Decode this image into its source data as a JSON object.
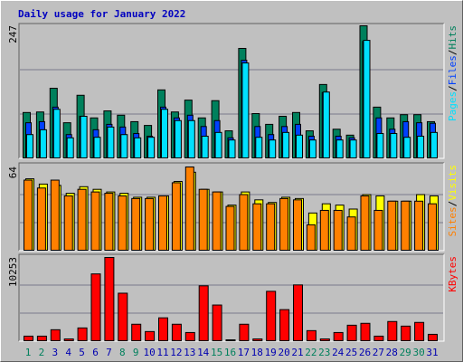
{
  "chart_data": [
    {
      "type": "bar",
      "title": "Daily usage for January 2022",
      "ylim": [
        0,
        247
      ],
      "yticks": [
        247
      ],
      "grid_lines": 3,
      "legend_separator": "/",
      "series": [
        {
          "name": "Hits",
          "color": "#00805c",
          "values": [
            86,
            87,
            131,
            67,
            118,
            76,
            89,
            81,
            69,
            62,
            128,
            87,
            109,
            76,
            108,
            52,
            205,
            84,
            64,
            79,
            86,
            52,
            138,
            55,
            44,
            247,
            96,
            76,
            82,
            82,
            69
          ]
        },
        {
          "name": "Files",
          "color": "#0040ff",
          "values": [
            67,
            69,
            96,
            45,
            79,
            54,
            64,
            59,
            47,
            42,
            96,
            76,
            81,
            60,
            71,
            39,
            183,
            60,
            45,
            60,
            64,
            42,
            123,
            42,
            39,
            218,
            76,
            55,
            69,
            67,
            66
          ]
        },
        {
          "name": "Pages",
          "color": "#00e0ff",
          "values": [
            45,
            54,
            92,
            39,
            79,
            40,
            59,
            45,
            39,
            40,
            92,
            71,
            71,
            42,
            49,
            35,
            178,
            40,
            35,
            49,
            44,
            35,
            124,
            35,
            35,
            220,
            47,
            47,
            40,
            42,
            49
          ]
        }
      ]
    },
    {
      "type": "bar",
      "ylim": [
        0,
        64
      ],
      "yticks": [
        64
      ],
      "grid_lines": 3,
      "legend_separator": "/",
      "series": [
        {
          "name": "Visits",
          "color": "#ffff00",
          "values": [
            55,
            51,
            50,
            44,
            49,
            47,
            45,
            44,
            41,
            41,
            42,
            53,
            60,
            47,
            45,
            35,
            45,
            39,
            37,
            41,
            40,
            29,
            36,
            35,
            32,
            43,
            42,
            38,
            38,
            43,
            42
          ]
        },
        {
          "name": "Sites",
          "color": "#ff8000",
          "values": [
            54,
            48,
            54,
            42,
            47,
            45,
            44,
            42,
            40,
            40,
            42,
            52,
            64,
            47,
            45,
            34,
            43,
            36,
            36,
            40,
            39,
            20,
            31,
            31,
            26,
            42,
            31,
            38,
            38,
            38,
            36
          ]
        }
      ]
    },
    {
      "type": "bar",
      "ylim": [
        0,
        10253
      ],
      "yticks": [
        10253
      ],
      "grid_lines": 3,
      "series": [
        {
          "name": "KBytes",
          "color": "#ff0000",
          "values": [
            670,
            670,
            1450,
            330,
            1670,
            8250,
            10253,
            5900,
            2120,
            1230,
            2900,
            2120,
            1110,
            6800,
            4460,
            220,
            2120,
            330,
            6130,
            3900,
            6910,
            1340,
            330,
            1110,
            2000,
            2230,
            670,
            2450,
            1890,
            2340,
            890
          ]
        }
      ],
      "categories": [
        "1",
        "2",
        "3",
        "4",
        "5",
        "6",
        "7",
        "8",
        "9",
        "10",
        "11",
        "12",
        "13",
        "14",
        "15",
        "16",
        "17",
        "18",
        "19",
        "20",
        "21",
        "22",
        "23",
        "24",
        "25",
        "26",
        "27",
        "28",
        "29",
        "30",
        "31"
      ],
      "label_colors": [
        "#00805c",
        "#00805c",
        "#0000b0",
        "#0000b0",
        "#0000b0",
        "#0000b0",
        "#0000b0",
        "#00805c",
        "#00805c",
        "#0000b0",
        "#0000b0",
        "#0000b0",
        "#0000b0",
        "#0000b0",
        "#00805c",
        "#00805c",
        "#0000b0",
        "#0000b0",
        "#0000b0",
        "#0000b0",
        "#0000b0",
        "#00805c",
        "#00805c",
        "#0000b0",
        "#0000b0",
        "#0000b0",
        "#0000b0",
        "#0000b0",
        "#00805c",
        "#00805c",
        "#0000b0"
      ]
    }
  ]
}
